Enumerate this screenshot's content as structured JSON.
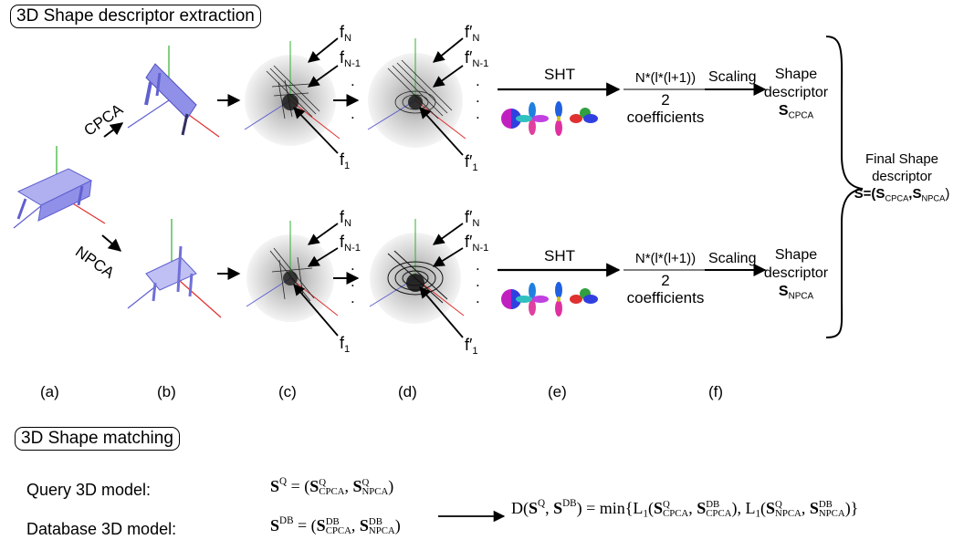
{
  "titles": {
    "extraction": "3D Shape descriptor extraction",
    "matching": "3D Shape matching"
  },
  "pipeline": {
    "cpca_label": "CPCA",
    "npca_label": "NPCA",
    "sht_label": "SHT",
    "coef_numerator": "N*(l*(l+1))",
    "coef_two": "2",
    "coef_word": "coefficients",
    "scaling": "Scaling",
    "shape_word": "Shape",
    "descriptor_word": "descriptor",
    "s_cpca_main": "S",
    "s_cpca_sub": "CPCA",
    "s_npca_main": "S",
    "s_npca_sub": "NPCA",
    "fN": "f",
    "fN_sub": "N",
    "fN1_sub": "N-1",
    "f1_sub": "1",
    "prime": "′",
    "dots": "."
  },
  "final": {
    "line1": "Final Shape",
    "line2": "descriptor",
    "eq": "S=(S",
    "cpca": "CPCA",
    "comma": ",S",
    "npca": "NPCA",
    "close": ")"
  },
  "stage_labels": [
    "(a)",
    "(b)",
    "(c)",
    "(d)",
    "(e)",
    "(f)"
  ],
  "matching": {
    "query_label": "Query 3D model:",
    "db_label": "Database 3D model:",
    "S": "S",
    "Q": "Q",
    "DB": "DB",
    "CPCA": "CPCA",
    "NPCA": "NPCA",
    "D": "D",
    "min": "min",
    "L": "L",
    "one": "1"
  },
  "colors": {
    "model": "#8080e8",
    "axis_x": "#e03030",
    "axis_y": "#30b030",
    "axis_z": "#6060d0",
    "sphere": "#c8c8c8"
  }
}
